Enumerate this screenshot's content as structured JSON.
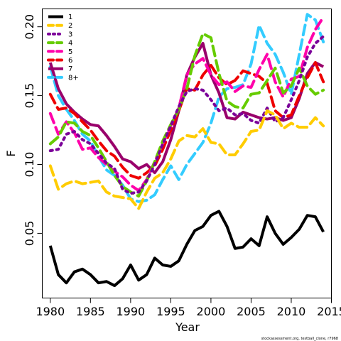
{
  "chart_data": {
    "type": "line",
    "title": "",
    "xlabel": "Year",
    "ylabel": "F",
    "xlim": [
      1979,
      2015
    ],
    "ylim": [
      0.003,
      0.213
    ],
    "xticks": [
      "1980",
      "1985",
      "1990",
      "1995",
      "2000",
      "2005",
      "2010",
      "2015"
    ],
    "yticks": [
      "0.05",
      "0.10",
      "0.15",
      "0.20"
    ],
    "grid": false,
    "legend_position": "top-left",
    "x": [
      1980,
      1981,
      1982,
      1983,
      1984,
      1985,
      1986,
      1987,
      1988,
      1989,
      1990,
      1991,
      1992,
      1993,
      1994,
      1995,
      1996,
      1997,
      1998,
      1999,
      2000,
      2001,
      2002,
      2003,
      2004,
      2005,
      2006,
      2007,
      2008,
      2009,
      2010,
      2011,
      2012,
      2013,
      2014
    ],
    "series": [
      {
        "name": "1",
        "color": "#000000",
        "dash": "solid",
        "values": [
          0.041,
          0.02,
          0.014,
          0.022,
          0.024,
          0.02,
          0.014,
          0.015,
          0.012,
          0.017,
          0.027,
          0.016,
          0.02,
          0.032,
          0.027,
          0.026,
          0.03,
          0.042,
          0.052,
          0.055,
          0.063,
          0.066,
          0.055,
          0.039,
          0.04,
          0.046,
          0.041,
          0.062,
          0.05,
          0.042,
          0.047,
          0.053,
          0.063,
          0.062,
          0.051
        ]
      },
      {
        "name": "2",
        "color": "#FFCC00",
        "dash": "dash",
        "values": [
          0.099,
          0.082,
          0.086,
          0.088,
          0.086,
          0.087,
          0.088,
          0.08,
          0.077,
          0.076,
          0.075,
          0.068,
          0.08,
          0.09,
          0.094,
          0.104,
          0.117,
          0.121,
          0.12,
          0.126,
          0.116,
          0.115,
          0.107,
          0.107,
          0.115,
          0.124,
          0.125,
          0.139,
          0.136,
          0.126,
          0.13,
          0.127,
          0.127,
          0.134,
          0.128
        ]
      },
      {
        "name": "3",
        "color": "#7B0099",
        "dash": "dot",
        "values": [
          0.11,
          0.111,
          0.122,
          0.124,
          0.118,
          0.115,
          0.108,
          0.101,
          0.097,
          0.082,
          0.079,
          0.08,
          0.088,
          0.1,
          0.115,
          0.128,
          0.142,
          0.153,
          0.155,
          0.154,
          0.147,
          0.139,
          0.141,
          0.136,
          0.137,
          0.132,
          0.13,
          0.141,
          0.131,
          0.134,
          0.147,
          0.161,
          0.178,
          0.188,
          0.193
        ]
      },
      {
        "name": "4",
        "color": "#66CC00",
        "dash": "dash",
        "values": [
          0.115,
          0.12,
          0.131,
          0.13,
          0.124,
          0.121,
          0.112,
          0.102,
          0.092,
          0.084,
          0.08,
          0.077,
          0.088,
          0.102,
          0.117,
          0.129,
          0.14,
          0.155,
          0.179,
          0.195,
          0.192,
          0.166,
          0.146,
          0.142,
          0.141,
          0.151,
          0.152,
          0.161,
          0.17,
          0.152,
          0.157,
          0.17,
          0.157,
          0.151,
          0.154
        ]
      },
      {
        "name": "5",
        "color": "#FF00AA",
        "dash": "dash",
        "values": [
          0.137,
          0.122,
          0.131,
          0.123,
          0.111,
          0.112,
          0.105,
          0.1,
          0.095,
          0.091,
          0.085,
          0.081,
          0.089,
          0.102,
          0.115,
          0.128,
          0.141,
          0.165,
          0.173,
          0.177,
          0.165,
          0.158,
          0.16,
          0.153,
          0.157,
          0.156,
          0.169,
          0.18,
          0.16,
          0.149,
          0.162,
          0.164,
          0.185,
          0.198,
          0.207
        ]
      },
      {
        "name": "6",
        "color": "#EE0000",
        "dash": "dash",
        "values": [
          0.151,
          0.14,
          0.141,
          0.137,
          0.131,
          0.125,
          0.117,
          0.11,
          0.106,
          0.098,
          0.092,
          0.09,
          0.094,
          0.099,
          0.111,
          0.125,
          0.139,
          0.155,
          0.154,
          0.165,
          0.172,
          0.163,
          0.158,
          0.161,
          0.168,
          0.166,
          0.164,
          0.159,
          0.139,
          0.134,
          0.136,
          0.15,
          0.163,
          0.174,
          0.16
        ]
      },
      {
        "name": "7",
        "color": "#99006B",
        "dash": "solid",
        "values": [
          0.174,
          0.155,
          0.144,
          0.138,
          0.133,
          0.129,
          0.128,
          0.121,
          0.113,
          0.104,
          0.102,
          0.097,
          0.1,
          0.094,
          0.102,
          0.118,
          0.139,
          0.165,
          0.178,
          0.188,
          0.165,
          0.152,
          0.134,
          0.133,
          0.138,
          0.136,
          0.134,
          0.133,
          0.134,
          0.132,
          0.134,
          0.148,
          0.166,
          0.174,
          0.171
        ]
      },
      {
        "name": "8+",
        "color": "#33CCFF",
        "dash": "dash",
        "values": [
          0.171,
          0.15,
          0.14,
          0.132,
          0.122,
          0.117,
          0.106,
          0.096,
          0.092,
          0.085,
          0.075,
          0.073,
          0.074,
          0.078,
          0.089,
          0.099,
          0.089,
          0.1,
          0.108,
          0.116,
          0.13,
          0.149,
          0.155,
          0.156,
          0.158,
          0.173,
          0.201,
          0.188,
          0.18,
          0.167,
          0.151,
          0.18,
          0.209,
          0.205,
          0.189
        ]
      }
    ]
  },
  "credit": "stockassessment.org,  testball_clone, r7968"
}
